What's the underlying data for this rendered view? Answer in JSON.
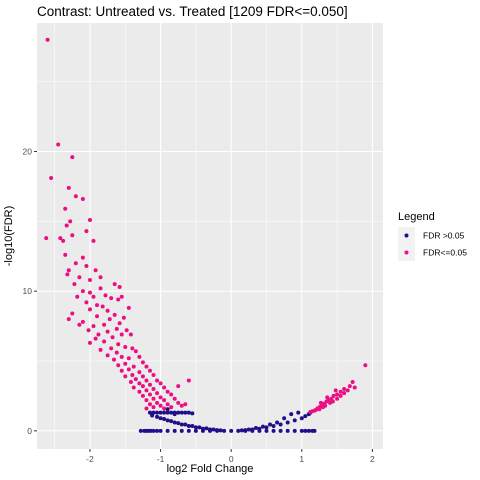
{
  "chart_data": {
    "type": "scatter",
    "title": "Contrast: Untreated vs. Treated  [1209 FDR<=0.050]",
    "xlabel": "log2 Fold Change",
    "ylabel": "-log10(FDR)",
    "xlim": [
      -2.75,
      2.15
    ],
    "ylim": [
      -1.3,
      29.2
    ],
    "x_ticks": [
      -2,
      -1,
      0,
      1,
      2
    ],
    "x_tick_labels": [
      "-2",
      "-1",
      "0",
      "1",
      "2"
    ],
    "y_ticks": [
      0,
      10,
      20
    ],
    "y_tick_labels": [
      "0",
      "10",
      "20"
    ],
    "grid": true,
    "legend": {
      "title": "Legend",
      "position": "right",
      "entries": [
        {
          "label": "FDR >0.05",
          "color": "#1f0f8a"
        },
        {
          "label": "FDR<=0.05",
          "color": "#ec0f82"
        }
      ]
    },
    "series": [
      {
        "name": "FDR>0.05",
        "color": "#1f0f8a",
        "points": [
          [
            -1.28,
            0.0
          ],
          [
            -1.23,
            0.0
          ],
          [
            -1.2,
            0.0
          ],
          [
            -1.17,
            0.0
          ],
          [
            -1.14,
            0.0
          ],
          [
            -1.1,
            0.0
          ],
          [
            -1.05,
            0.0
          ],
          [
            -1.0,
            0.0
          ],
          [
            -0.9,
            0.0
          ],
          [
            -0.8,
            0.0
          ],
          [
            -0.7,
            0.0
          ],
          [
            -0.6,
            0.0
          ],
          [
            -0.5,
            0.0
          ],
          [
            -0.4,
            0.0
          ],
          [
            -0.3,
            0.0
          ],
          [
            -0.2,
            0.0
          ],
          [
            -0.1,
            0.0
          ],
          [
            0.0,
            0.0
          ],
          [
            0.1,
            0.0
          ],
          [
            0.2,
            0.0
          ],
          [
            0.3,
            0.0
          ],
          [
            0.4,
            0.0
          ],
          [
            0.5,
            0.0
          ],
          [
            0.6,
            0.0
          ],
          [
            0.7,
            0.0
          ],
          [
            0.8,
            0.0
          ],
          [
            0.9,
            0.0
          ],
          [
            1.0,
            0.0
          ],
          [
            1.05,
            0.0
          ],
          [
            1.1,
            0.0
          ],
          [
            1.15,
            0.0
          ],
          [
            1.18,
            0.0
          ],
          [
            -1.15,
            1.3
          ],
          [
            -1.1,
            1.3
          ],
          [
            -1.05,
            1.3
          ],
          [
            -1.0,
            1.3
          ],
          [
            -0.95,
            1.3
          ],
          [
            -0.9,
            1.3
          ],
          [
            -0.85,
            1.3
          ],
          [
            -0.8,
            1.3
          ],
          [
            -0.75,
            1.3
          ],
          [
            -0.7,
            1.3
          ],
          [
            -0.65,
            1.3
          ],
          [
            -0.6,
            1.3
          ],
          [
            -0.55,
            1.25
          ],
          [
            -0.9,
            1.55
          ],
          [
            -0.8,
            1.2
          ],
          [
            -1.12,
            1.1
          ],
          [
            -1.0,
            0.9
          ],
          [
            -0.9,
            0.75
          ],
          [
            -0.8,
            0.6
          ],
          [
            -0.7,
            0.45
          ],
          [
            -0.6,
            0.35
          ],
          [
            -0.5,
            0.25
          ],
          [
            -0.4,
            0.15
          ],
          [
            -0.3,
            0.1
          ],
          [
            -0.2,
            0.05
          ],
          [
            -1.05,
            1.0
          ],
          [
            -0.95,
            0.85
          ],
          [
            -0.85,
            0.7
          ],
          [
            -0.75,
            0.55
          ],
          [
            -0.65,
            0.45
          ],
          [
            -0.55,
            0.35
          ],
          [
            -0.45,
            0.25
          ],
          [
            -0.35,
            0.18
          ],
          [
            -0.25,
            0.1
          ],
          [
            0.2,
            0.05
          ],
          [
            0.3,
            0.1
          ],
          [
            0.4,
            0.15
          ],
          [
            0.5,
            0.25
          ],
          [
            0.6,
            0.35
          ],
          [
            0.7,
            0.45
          ],
          [
            0.8,
            0.6
          ],
          [
            0.9,
            0.75
          ],
          [
            1.0,
            0.9
          ],
          [
            1.05,
            1.05
          ],
          [
            1.1,
            1.2
          ],
          [
            1.12,
            1.3
          ],
          [
            0.95,
            1.3
          ],
          [
            0.85,
            1.2
          ],
          [
            0.75,
            0.9
          ],
          [
            0.65,
            0.6
          ],
          [
            0.55,
            0.45
          ],
          [
            0.45,
            0.3
          ],
          [
            0.35,
            0.2
          ],
          [
            0.25,
            0.1
          ],
          [
            0.15,
            0.03
          ],
          [
            -0.15,
            0.03
          ]
        ]
      },
      {
        "name": "FDR<=0.05",
        "color": "#ec0f82",
        "points": [
          [
            -2.6,
            28.0
          ],
          [
            -2.45,
            20.5
          ],
          [
            -2.25,
            19.6
          ],
          [
            -2.55,
            18.1
          ],
          [
            -2.3,
            17.4
          ],
          [
            -2.2,
            16.8
          ],
          [
            -2.35,
            15.9
          ],
          [
            -2.1,
            16.6
          ],
          [
            -2.0,
            15.1
          ],
          [
            -2.28,
            15.0
          ],
          [
            -2.33,
            14.7
          ],
          [
            -2.05,
            14.3
          ],
          [
            -2.25,
            14.0
          ],
          [
            -2.62,
            13.8
          ],
          [
            -2.42,
            13.8
          ],
          [
            -2.38,
            13.6
          ],
          [
            -1.95,
            13.6
          ],
          [
            -2.35,
            12.6
          ],
          [
            -2.1,
            12.4
          ],
          [
            -2.2,
            12.0
          ],
          [
            -2.05,
            11.8
          ],
          [
            -2.3,
            11.5
          ],
          [
            -2.32,
            11.2
          ],
          [
            -2.0,
            10.8
          ],
          [
            -2.15,
            11.0
          ],
          [
            -1.92,
            11.5
          ],
          [
            -2.22,
            10.5
          ],
          [
            -2.1,
            10.0
          ],
          [
            -1.85,
            10.2
          ],
          [
            -2.0,
            9.9
          ],
          [
            -1.95,
            9.6
          ],
          [
            -2.18,
            9.6
          ],
          [
            -1.78,
            9.7
          ],
          [
            -1.7,
            9.5
          ],
          [
            -2.05,
            9.2
          ],
          [
            -1.9,
            9.0
          ],
          [
            -1.82,
            8.9
          ],
          [
            -2.0,
            8.7
          ],
          [
            -1.75,
            8.6
          ],
          [
            -1.6,
            9.4
          ],
          [
            -1.55,
            9.6
          ],
          [
            -1.65,
            8.3
          ],
          [
            -1.9,
            8.2
          ],
          [
            -1.72,
            8.0
          ],
          [
            -2.1,
            7.8
          ],
          [
            -2.15,
            7.6
          ],
          [
            -2.25,
            8.4
          ],
          [
            -2.3,
            8.0
          ],
          [
            -1.8,
            7.6
          ],
          [
            -1.58,
            7.7
          ],
          [
            -1.95,
            7.5
          ],
          [
            -1.62,
            7.3
          ],
          [
            -2.02,
            7.2
          ],
          [
            -1.75,
            7.1
          ],
          [
            -1.88,
            6.9
          ],
          [
            -1.55,
            6.9
          ],
          [
            -1.68,
            6.7
          ],
          [
            -1.48,
            7.2
          ],
          [
            -1.92,
            6.6
          ],
          [
            -1.42,
            6.9
          ],
          [
            -1.8,
            6.4
          ],
          [
            -1.6,
            6.2
          ],
          [
            -2.0,
            6.3
          ],
          [
            -1.7,
            5.9
          ],
          [
            -1.5,
            6.0
          ],
          [
            -1.85,
            5.8
          ],
          [
            -1.4,
            5.9
          ],
          [
            -1.62,
            5.6
          ],
          [
            -1.35,
            5.7
          ],
          [
            -1.75,
            5.4
          ],
          [
            -1.55,
            5.3
          ],
          [
            -1.45,
            5.2
          ],
          [
            -1.3,
            5.3
          ],
          [
            -1.66,
            5.1
          ],
          [
            -1.25,
            4.9
          ],
          [
            -1.5,
            4.8
          ],
          [
            -1.6,
            4.7
          ],
          [
            -1.38,
            4.6
          ],
          [
            -1.2,
            4.6
          ],
          [
            -1.45,
            4.4
          ],
          [
            -1.55,
            4.3
          ],
          [
            -1.3,
            4.2
          ],
          [
            -1.15,
            4.3
          ],
          [
            -1.4,
            4.0
          ],
          [
            -1.25,
            3.9
          ],
          [
            -1.5,
            3.9
          ],
          [
            -1.1,
            4.0
          ],
          [
            -1.35,
            3.7
          ],
          [
            -1.2,
            3.6
          ],
          [
            -1.05,
            3.6
          ],
          [
            -1.42,
            3.5
          ],
          [
            -1.3,
            3.4
          ],
          [
            -1.15,
            3.3
          ],
          [
            -1.0,
            3.4
          ],
          [
            -1.25,
            3.2
          ],
          [
            -1.38,
            3.1
          ],
          [
            -1.1,
            3.0
          ],
          [
            -0.95,
            3.1
          ],
          [
            -1.2,
            2.9
          ],
          [
            -1.3,
            2.8
          ],
          [
            -1.05,
            2.7
          ],
          [
            -0.9,
            2.8
          ],
          [
            -1.15,
            2.6
          ],
          [
            -1.25,
            2.5
          ],
          [
            -1.0,
            2.4
          ],
          [
            -0.85,
            2.6
          ],
          [
            -1.1,
            2.3
          ],
          [
            -1.2,
            2.2
          ],
          [
            -0.95,
            2.2
          ],
          [
            -1.05,
            2.0
          ],
          [
            -0.8,
            2.3
          ],
          [
            -1.15,
            1.9
          ],
          [
            -0.9,
            1.9
          ],
          [
            -1.0,
            1.8
          ],
          [
            -1.1,
            1.7
          ],
          [
            -0.85,
            1.7
          ],
          [
            -0.75,
            2.0
          ],
          [
            -1.2,
            1.6
          ],
          [
            -0.95,
            1.6
          ],
          [
            -0.7,
            1.8
          ],
          [
            -0.65,
            1.9
          ],
          [
            -0.75,
            3.2
          ],
          [
            -0.6,
            3.6
          ],
          [
            -1.58,
            10.3
          ],
          [
            -1.45,
            8.8
          ],
          [
            -1.52,
            8.1
          ],
          [
            -1.85,
            11.0
          ],
          [
            -1.65,
            10.5
          ],
          [
            1.9,
            4.7
          ],
          [
            1.72,
            3.5
          ],
          [
            1.75,
            3.1
          ],
          [
            1.68,
            3.2
          ],
          [
            1.6,
            3.0
          ],
          [
            1.55,
            2.8
          ],
          [
            1.5,
            2.6
          ],
          [
            1.45,
            2.5
          ],
          [
            1.42,
            2.3
          ],
          [
            1.38,
            2.2
          ],
          [
            1.35,
            2.1
          ],
          [
            1.32,
            1.95
          ],
          [
            1.28,
            1.8
          ],
          [
            1.25,
            1.7
          ],
          [
            1.22,
            1.6
          ],
          [
            1.2,
            1.5
          ],
          [
            1.18,
            1.45
          ],
          [
            1.15,
            1.4
          ],
          [
            1.12,
            1.35
          ],
          [
            1.6,
            2.7
          ],
          [
            1.5,
            2.3
          ],
          [
            1.4,
            2.0
          ],
          [
            1.3,
            1.7
          ],
          [
            1.25,
            1.55
          ],
          [
            1.48,
            2.9
          ],
          [
            1.36,
            2.4
          ],
          [
            1.27,
            2.0
          ],
          [
            1.55,
            2.5
          ],
          [
            1.65,
            2.9
          ],
          [
            1.44,
            2.1
          ],
          [
            1.33,
            1.8
          ]
        ]
      }
    ]
  }
}
